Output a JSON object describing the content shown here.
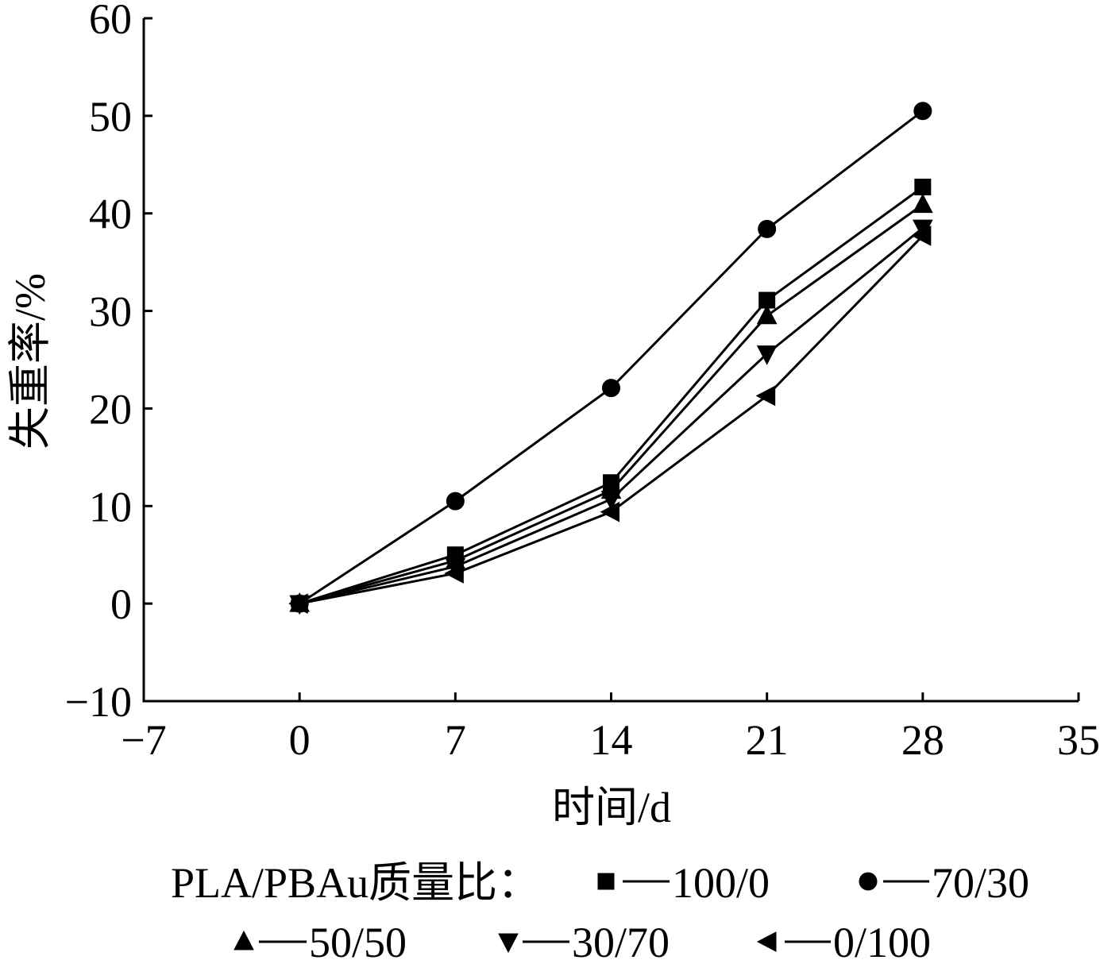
{
  "chart_data": {
    "type": "line",
    "xlabel": "时间/d",
    "ylabel": "失重率/%",
    "xlim": [
      -7,
      35
    ],
    "ylim": [
      -10,
      60
    ],
    "x_tick_labels": [
      "−7",
      "0",
      "7",
      "14",
      "21",
      "28",
      "35"
    ],
    "y_tick_labels": [
      "−10",
      "0",
      "10",
      "20",
      "30",
      "40",
      "50",
      "60"
    ],
    "grid": false,
    "legend_position": "bottom",
    "legend_title": "PLA/PBAu质量比：",
    "color": "#000000",
    "x": [
      0,
      7,
      14,
      21,
      28
    ],
    "series": [
      {
        "name": "100/0",
        "marker": "square",
        "values": [
          0,
          5.0,
          12.4,
          31.1,
          42.7
        ]
      },
      {
        "name": "70/30",
        "marker": "circle",
        "values": [
          0,
          10.5,
          22.1,
          38.4,
          50.5
        ]
      },
      {
        "name": "50/50",
        "marker": "triangle-up",
        "values": [
          0,
          4.4,
          11.6,
          29.5,
          40.9
        ]
      },
      {
        "name": "30/70",
        "marker": "triangle-down",
        "values": [
          0,
          3.8,
          10.7,
          25.6,
          38.5
        ]
      },
      {
        "name": "0/100",
        "marker": "triangle-left",
        "values": [
          0,
          3.1,
          9.4,
          21.3,
          37.7
        ]
      }
    ]
  }
}
